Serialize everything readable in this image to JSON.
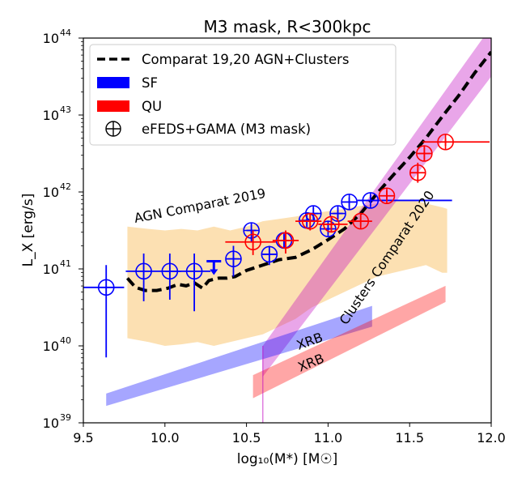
{
  "chart_data": {
    "type": "scatter",
    "title": "M3 mask, R<300kpc",
    "xlabel": "log₁₀(M*) [M☉]",
    "ylabel": "L_X [erg/s]",
    "xlim": [
      9.5,
      12.0
    ],
    "ylim_log10": [
      39,
      44
    ],
    "y_scale": "log",
    "x_ticks": [
      "9.5",
      "10.0",
      "10.5",
      "11.0",
      "11.5",
      "12.0"
    ],
    "y_ticks": [
      {
        "base": "10",
        "exp": "39"
      },
      {
        "base": "10",
        "exp": "40"
      },
      {
        "base": "10",
        "exp": "41"
      },
      {
        "base": "10",
        "exp": "42"
      },
      {
        "base": "10",
        "exp": "43"
      },
      {
        "base": "10",
        "exp": "44"
      }
    ],
    "legend": {
      "placement": "upper-left",
      "entries": [
        {
          "label": "Comparat 19,20 AGN+Clusters",
          "kind": "dashed-line",
          "color": "#000000"
        },
        {
          "label": "SF",
          "kind": "patch",
          "color": "#0000ff"
        },
        {
          "label": "QU",
          "kind": "patch",
          "color": "#ff0000"
        },
        {
          "label": "eFEDS+GAMA (M3 mask)",
          "kind": "circle-plus",
          "color": "#000000"
        }
      ]
    },
    "annotations": [
      {
        "text": "AGN Comparat 2019",
        "color": "#f5a623"
      },
      {
        "text": "Clusters Comparat 2020",
        "color": "#c000c0"
      },
      {
        "text": "XRB",
        "color": "#0000ff"
      },
      {
        "text": "XRB",
        "color": "#ff0000"
      }
    ],
    "model_curve": {
      "name": "Comparat 19,20 AGN+Clusters",
      "x": [
        9.77,
        9.82,
        9.88,
        9.95,
        10.02,
        10.08,
        10.13,
        10.18,
        10.23,
        10.27,
        10.33,
        10.38,
        10.43,
        10.5,
        10.6,
        10.7,
        10.8,
        10.9,
        11.0,
        11.1,
        11.2,
        11.3,
        11.4,
        11.5,
        11.6,
        11.7,
        11.8,
        11.9,
        12.0
      ],
      "log_y": [
        40.88,
        40.76,
        40.72,
        40.72,
        40.75,
        40.8,
        40.78,
        40.82,
        40.75,
        40.85,
        40.88,
        40.88,
        40.9,
        40.98,
        41.05,
        41.12,
        41.15,
        41.25,
        41.38,
        41.52,
        41.72,
        41.98,
        42.22,
        42.45,
        42.7,
        42.98,
        43.25,
        43.55,
        43.82
      ]
    },
    "bands": [
      {
        "name": "AGN Comparat 2019",
        "color": "#f5a623",
        "x": [
          9.77,
          9.9,
          10.0,
          10.1,
          10.2,
          10.3,
          10.4,
          10.5,
          10.6,
          10.7,
          10.8,
          10.9,
          11.0,
          11.1,
          11.2,
          11.3,
          11.4,
          11.5,
          11.6,
          11.7,
          11.73
        ],
        "upper_log": [
          41.55,
          41.52,
          41.5,
          41.52,
          41.5,
          41.55,
          41.5,
          41.55,
          41.62,
          41.65,
          41.68,
          41.72,
          41.75,
          41.78,
          41.82,
          41.85,
          41.88,
          41.9,
          41.85,
          41.8,
          41.78
        ],
        "lower_log": [
          40.1,
          40.05,
          40.0,
          40.02,
          40.05,
          40.0,
          40.05,
          40.1,
          40.15,
          40.25,
          40.35,
          40.5,
          40.6,
          40.7,
          40.8,
          40.9,
          40.95,
          41.0,
          41.05,
          40.95,
          40.95
        ]
      },
      {
        "name": "Clusters Comparat 2020",
        "color": "#c000c0",
        "x": [
          10.6,
          12.0
        ],
        "upper_log": [
          40.0,
          44.15
        ],
        "lower_log": [
          39.6,
          43.5
        ]
      },
      {
        "name": "XRB SF",
        "color": "#0000ff",
        "x": [
          9.64,
          11.27
        ],
        "upper_log": [
          39.38,
          40.52
        ],
        "lower_log": [
          39.22,
          40.25
        ]
      },
      {
        "name": "XRB QU",
        "color": "#ff0000",
        "x": [
          10.54,
          11.72
        ],
        "upper_log": [
          39.62,
          40.78
        ],
        "lower_log": [
          39.32,
          40.57
        ]
      }
    ],
    "series": [
      {
        "name": "SF",
        "color": "#0000ff",
        "points": [
          {
            "x": 9.64,
            "log_y": 40.76,
            "xerr": [
              9.5,
              9.75
            ],
            "yerr": [
              39.85,
              41.05
            ]
          },
          {
            "x": 9.87,
            "log_y": 40.97,
            "xerr": [
              9.76,
              10.1
            ],
            "yerr": [
              40.58,
              41.2
            ]
          },
          {
            "x": 10.03,
            "log_y": 40.97,
            "xerr": [
              10.0,
              10.1
            ],
            "yerr": [
              40.6,
              41.2
            ]
          },
          {
            "x": 10.18,
            "log_y": 40.97,
            "xerr": [
              10.1,
              10.28
            ],
            "yerr": [
              40.45,
              41.2
            ]
          },
          {
            "x": 10.42,
            "log_y": 41.13,
            "xerr": [
              10.38,
              10.46
            ],
            "yerr": [
              40.9,
              41.3
            ]
          },
          {
            "x": 10.53,
            "log_y": 41.5,
            "xerr": [
              10.5,
              10.56
            ],
            "yerr": [
              41.35,
              41.6
            ]
          },
          {
            "x": 10.64,
            "log_y": 41.19,
            "xerr": [
              10.6,
              10.68
            ],
            "yerr": [
              41.05,
              41.3
            ]
          },
          {
            "x": 10.73,
            "log_y": 41.37,
            "xerr": [
              10.7,
              10.76
            ],
            "yerr": [
              41.27,
              41.45
            ]
          },
          {
            "x": 10.87,
            "log_y": 41.63,
            "xerr": [
              10.84,
              10.9
            ],
            "yerr": [
              41.55,
              41.7
            ]
          },
          {
            "x": 10.91,
            "log_y": 41.72,
            "xerr": [
              10.88,
              10.94
            ],
            "yerr": [
              41.65,
              41.8
            ]
          },
          {
            "x": 11.0,
            "log_y": 41.52,
            "xerr": [
              10.97,
              11.03
            ],
            "yerr": [
              41.45,
              41.6
            ]
          },
          {
            "x": 11.06,
            "log_y": 41.72,
            "xerr": [
              11.03,
              11.09
            ],
            "yerr": [
              41.65,
              41.8
            ]
          },
          {
            "x": 11.13,
            "log_y": 41.87,
            "xerr": [
              11.08,
              11.18
            ],
            "yerr": [
              41.8,
              41.93
            ]
          },
          {
            "x": 11.26,
            "log_y": 41.89,
            "xerr": [
              11.18,
              11.76
            ],
            "yerr": [
              41.82,
              41.96
            ]
          }
        ]
      },
      {
        "name": "QU",
        "color": "#ff0000",
        "points": [
          {
            "x": 10.54,
            "log_y": 41.35,
            "xerr": [
              10.37,
              10.68
            ],
            "yerr": [
              41.18,
              41.5
            ]
          },
          {
            "x": 10.74,
            "log_y": 41.37,
            "xerr": [
              10.66,
              10.82
            ],
            "yerr": [
              41.2,
              41.5
            ]
          },
          {
            "x": 10.89,
            "log_y": 41.62,
            "xerr": [
              10.8,
              10.96
            ],
            "yerr": [
              41.5,
              41.72
            ]
          },
          {
            "x": 11.02,
            "log_y": 41.58,
            "xerr": [
              10.94,
              11.12
            ],
            "yerr": [
              41.48,
              41.68
            ]
          },
          {
            "x": 11.2,
            "log_y": 41.62,
            "xerr": [
              11.12,
              11.27
            ],
            "yerr": [
              41.55,
              41.7
            ]
          },
          {
            "x": 11.36,
            "log_y": 41.95,
            "xerr": [
              11.32,
              11.4
            ],
            "yerr": [
              41.88,
              42.02
            ]
          },
          {
            "x": 11.55,
            "log_y": 42.25,
            "xerr": [
              11.5,
              11.6
            ],
            "yerr": [
              42.12,
              42.38
            ]
          },
          {
            "x": 11.59,
            "log_y": 42.5,
            "xerr": [
              11.55,
              11.63
            ],
            "yerr": [
              42.4,
              42.6
            ]
          },
          {
            "x": 11.72,
            "log_y": 42.65,
            "xerr": [
              11.58,
              11.99
            ],
            "yerr": [
              42.6,
              42.7
            ]
          }
        ]
      }
    ],
    "upper_limits": [
      {
        "series": "SF",
        "x": 10.3,
        "log_y": 41.1,
        "color": "#0000ff"
      }
    ]
  }
}
